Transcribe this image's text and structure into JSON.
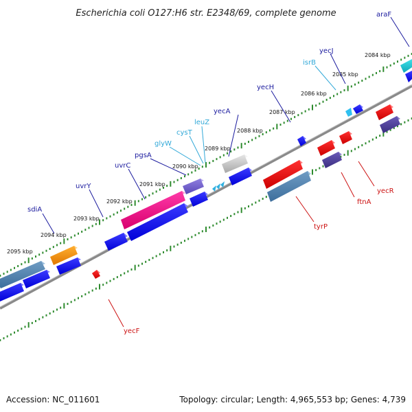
{
  "title": "Escherichia coli O127:H6 str. E2348/69, complete genome",
  "footer": {
    "accession": "Accession: NC_011601",
    "summary": "Topology: circular; Length: 4,965,553 bp; Genes: 4,739"
  },
  "colors": {
    "backbone": "#8a8a8a",
    "tick_green": "#2e8b2e",
    "label_blue": "#1a1a9e",
    "label_cyan": "#30a8d8",
    "label_red": "#cc1111"
  },
  "ticks": [
    {
      "label": "2095 kbp"
    },
    {
      "label": "2094 kbp"
    },
    {
      "label": "2093 kbp"
    },
    {
      "label": "2092 kbp"
    },
    {
      "label": "2091 kbp"
    },
    {
      "label": "2090 kbp"
    },
    {
      "label": "2089 kbp"
    },
    {
      "label": "2088 kbp"
    },
    {
      "label": "2087 kbp"
    },
    {
      "label": "2086 kbp"
    },
    {
      "label": "2085 kbp"
    },
    {
      "label": "2084 kbp"
    }
  ],
  "genes_top": [
    {
      "name": "sdiA",
      "color": "blue"
    },
    {
      "name": "uvrY",
      "color": "blue"
    },
    {
      "name": "uvrC",
      "color": "blue"
    },
    {
      "name": "pgsA",
      "color": "blue"
    },
    {
      "name": "glyW",
      "color": "cyan"
    },
    {
      "name": "cysT",
      "color": "cyan"
    },
    {
      "name": "leuZ",
      "color": "cyan"
    },
    {
      "name": "yecA",
      "color": "blue"
    },
    {
      "name": "yecH",
      "color": "blue"
    },
    {
      "name": "isrB",
      "color": "cyan"
    },
    {
      "name": "yecJ",
      "color": "blue"
    },
    {
      "name": "araF",
      "color": "blue"
    }
  ],
  "genes_bottom": [
    {
      "name": "yecF",
      "color": "red"
    },
    {
      "name": "tyrP",
      "color": "red"
    },
    {
      "name": "ftnA",
      "color": "red"
    },
    {
      "name": "yecR",
      "color": "red"
    }
  ]
}
